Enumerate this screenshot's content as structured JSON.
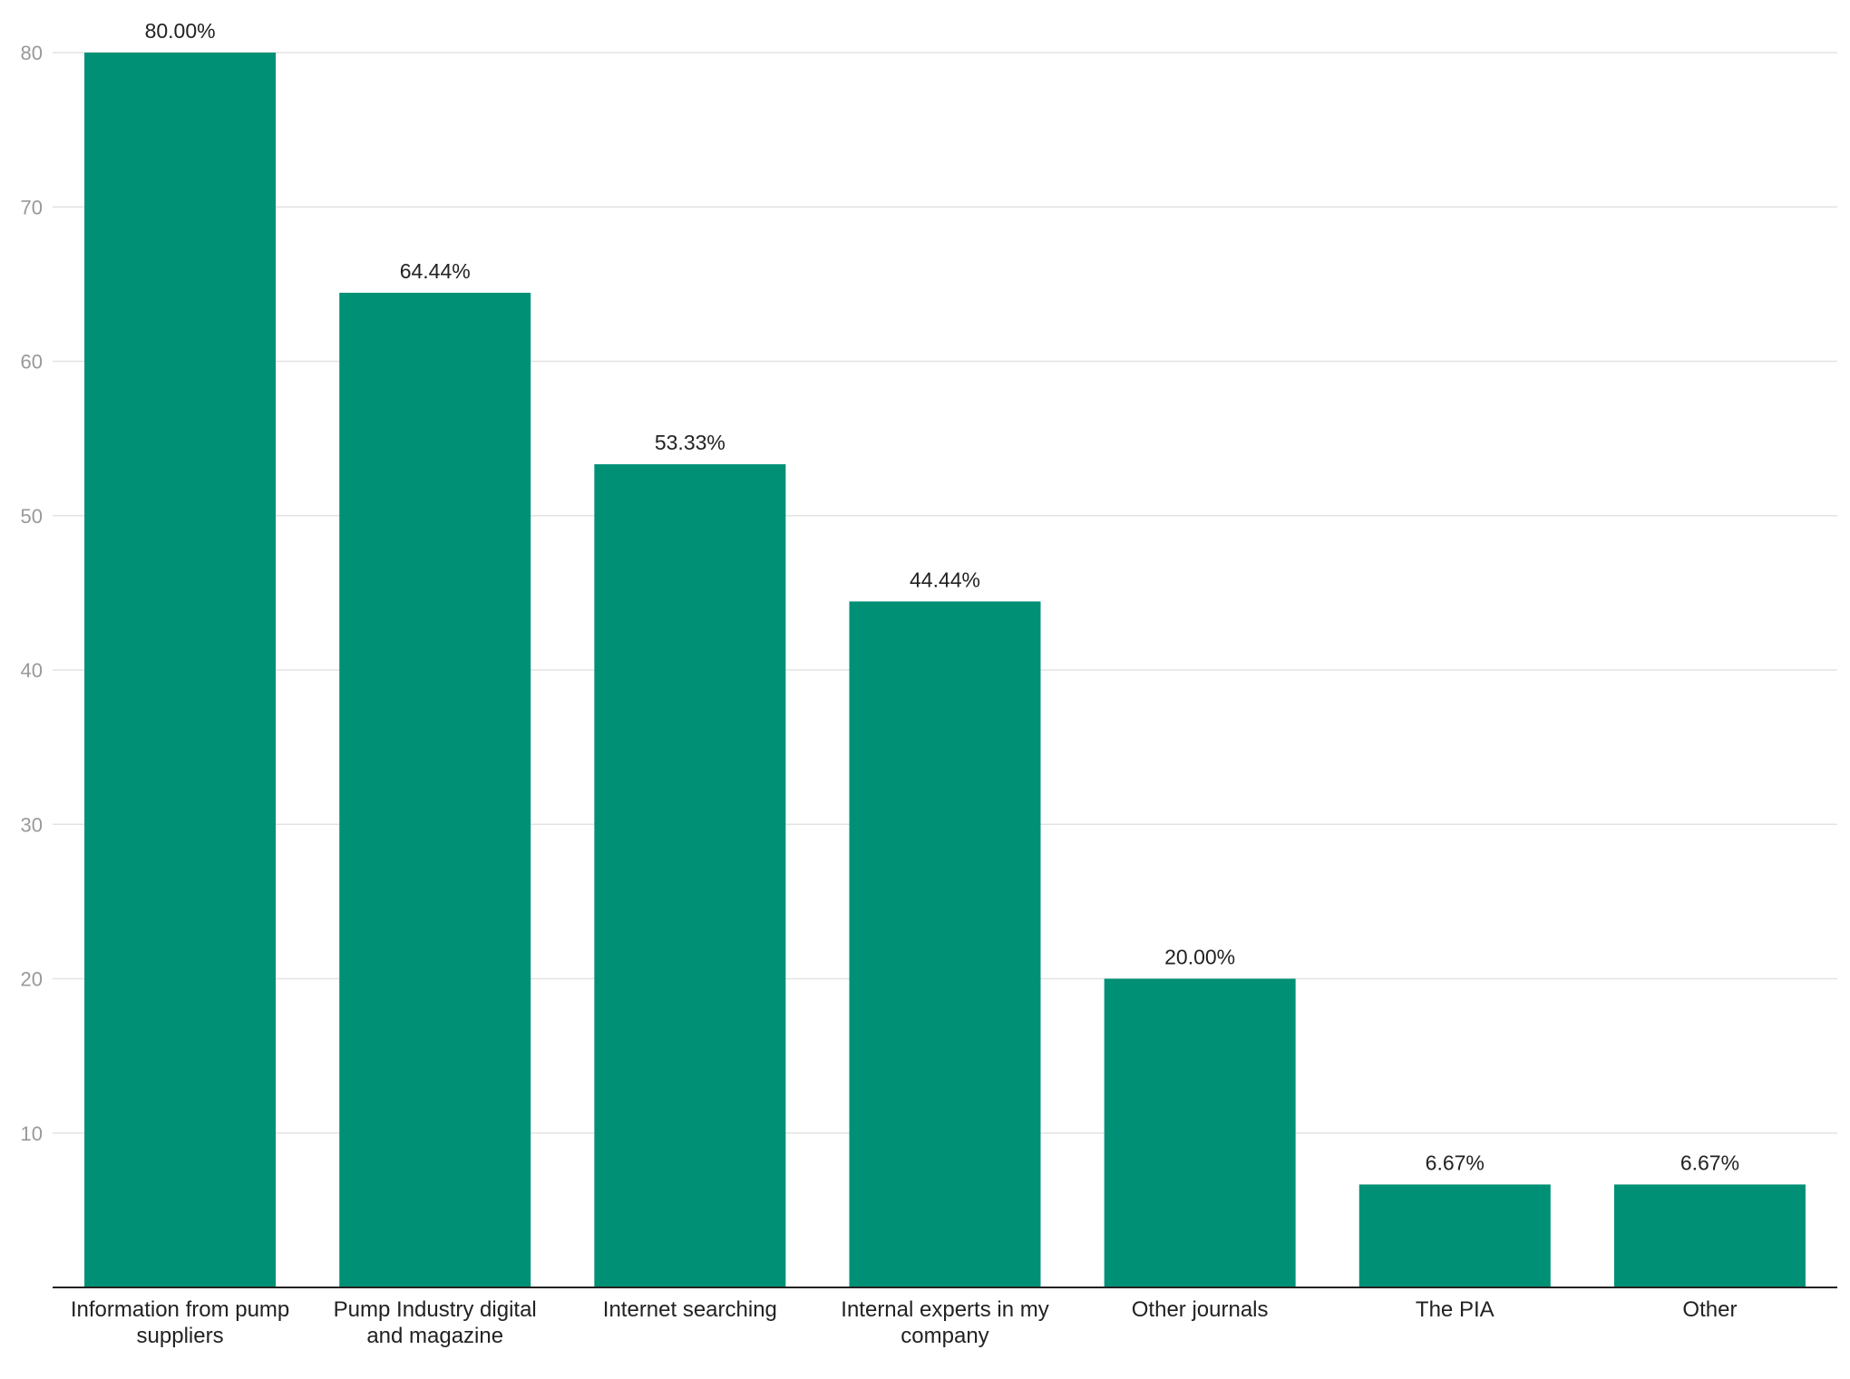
{
  "chart_data": {
    "type": "bar",
    "title": "",
    "xlabel": "",
    "ylabel": "",
    "categories": [
      [
        "Information from pump",
        "suppliers"
      ],
      [
        "Pump Industry digital",
        "and magazine"
      ],
      [
        "Internet searching"
      ],
      [
        "Internal experts in my",
        "company"
      ],
      [
        "Other journals"
      ],
      [
        "The PIA"
      ],
      [
        "Other"
      ]
    ],
    "values": [
      80.0,
      64.44,
      53.33,
      44.44,
      20.0,
      6.67,
      6.67
    ],
    "data_labels": [
      "80.00%",
      "64.44%",
      "53.33%",
      "44.44%",
      "20.00%",
      "6.67%",
      "6.67%"
    ],
    "yticks": [
      10,
      20,
      30,
      40,
      50,
      60,
      70,
      80
    ],
    "ylim": [
      0,
      80
    ],
    "grid": true,
    "legend": "none",
    "bar_color": "#009076",
    "grid_color": "#e3e3e3",
    "tick_color": "#999999",
    "text_color": "#222222"
  }
}
